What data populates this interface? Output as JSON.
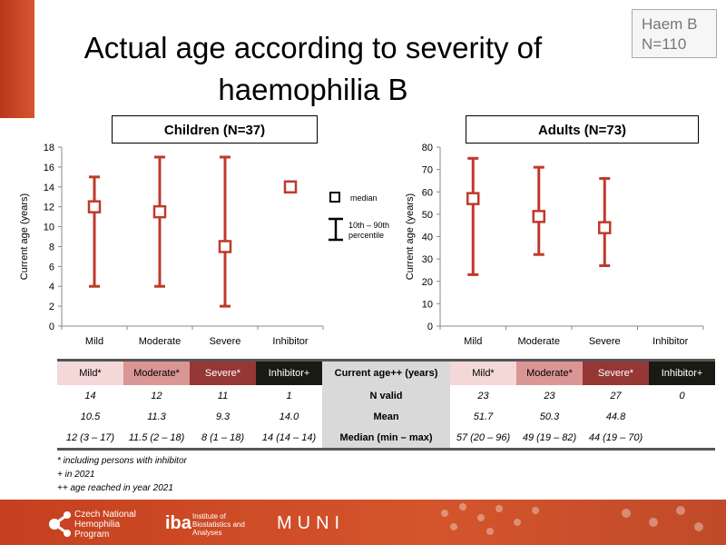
{
  "title": "Actual age according to severity of haemophilia B",
  "badge": {
    "line1": "Haem B",
    "line2": "N=110"
  },
  "legend": {
    "median": "median",
    "range_line1": "10th – 90th",
    "range_line2": "percentile"
  },
  "chart_data": [
    {
      "type": "errorbar",
      "title": "Children (N=37)",
      "ylabel": "Current age (years)",
      "ylim": [
        0,
        18
      ],
      "yticks": [
        0,
        2,
        4,
        6,
        8,
        10,
        12,
        14,
        16,
        18
      ],
      "categories": [
        "Mild",
        "Moderate",
        "Severe",
        "Inhibitor"
      ],
      "median": [
        12,
        11.5,
        8,
        14
      ],
      "p10": [
        4,
        4,
        2,
        null
      ],
      "p90": [
        15,
        17,
        17,
        null
      ],
      "color": "#c0392b"
    },
    {
      "type": "errorbar",
      "title": "Adults (N=73)",
      "ylabel": "Current age (years)",
      "ylim": [
        0,
        80
      ],
      "yticks": [
        0,
        10,
        20,
        30,
        40,
        50,
        60,
        70,
        80
      ],
      "categories": [
        "Mild",
        "Moderate",
        "Severe",
        "Inhibitor"
      ],
      "median": [
        57,
        49,
        44,
        null
      ],
      "p10": [
        23,
        32,
        27,
        null
      ],
      "p90": [
        75,
        71,
        66,
        null
      ],
      "color": "#c0392b"
    }
  ],
  "table": {
    "left_headers": [
      "Mild*",
      "Moderate*",
      "Severe*",
      "Inhibitor+"
    ],
    "mid_header": "Current age++ (years)",
    "right_headers": [
      "Mild*",
      "Moderate*",
      "Severe*",
      "Inhibitor+"
    ],
    "header_colors": [
      "#f4d7d7",
      "#d99694",
      "#953735",
      "#1a1a14"
    ],
    "rows": [
      {
        "label": "N valid",
        "left": [
          "14",
          "12",
          "11",
          "1"
        ],
        "right": [
          "23",
          "23",
          "27",
          "0"
        ]
      },
      {
        "label": "Mean",
        "left": [
          "10.5",
          "11.3",
          "9.3",
          "14.0"
        ],
        "right": [
          "51.7",
          "50.3",
          "44.8",
          ""
        ]
      },
      {
        "label": "Median (min – max)",
        "left": [
          "12 (3 – 17)",
          "11.5 (2 – 18)",
          "8 (1 – 18)",
          "14 (14 – 14)"
        ],
        "right": [
          "57 (20 – 96)",
          "49 (19 – 82)",
          "44 (19 – 70)",
          ""
        ]
      }
    ]
  },
  "notes": [
    "* including persons with inhibitor",
    "+ in 2021",
    "++ age reached in year 2021"
  ],
  "footer": {
    "cnhp": "Czech National Hemophilia Program",
    "iba": "iba",
    "iba_text": "Institute of Biostatistics and Analyses",
    "muni": "MUNI"
  }
}
